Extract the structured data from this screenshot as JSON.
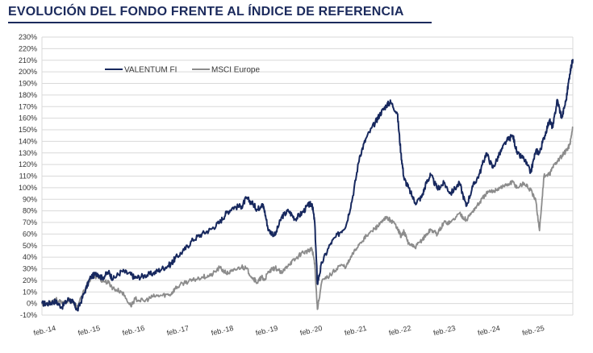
{
  "title": "EVOLUCIÓN DEL FONDO FRENTE AL ÍNDICE DE REFERENCIA",
  "chart_data": {
    "type": "line",
    "title": "EVOLUCIÓN DEL FONDO FRENTE AL ÍNDICE DE REFERENCIA",
    "xlabel": "",
    "ylabel": "",
    "ylim": [
      -10,
      230
    ],
    "y_unit": "%",
    "y_ticks": [
      "230%",
      "220%",
      "210%",
      "200%",
      "190%",
      "180%",
      "170%",
      "160%",
      "150%",
      "140%",
      "130%",
      "120%",
      "110%",
      "100%",
      "90%",
      "80%",
      "70%",
      "60%",
      "50%",
      "40%",
      "30%",
      "20%",
      "10%",
      "0%",
      "-10%"
    ],
    "x_ticks": [
      "feb.-14",
      "feb.-15",
      "feb.-16",
      "feb.-17",
      "feb.-18",
      "feb.-19",
      "feb.-20",
      "feb.-21",
      "feb.-22",
      "feb.-23",
      "feb.-24",
      "feb.-25"
    ],
    "x_range": [
      2014.0,
      2025.95
    ],
    "grid": true,
    "legend_position": "top-left",
    "colors": {
      "fund": "#17285e",
      "index": "#8c8c8c",
      "grid": "#d9d9d9",
      "plot_bg": "#ffffff"
    },
    "series": [
      {
        "name": "VALENTUM FI",
        "color": "#17285e",
        "x": [
          2014.0,
          2014.15,
          2014.3,
          2014.45,
          2014.6,
          2014.7,
          2014.8,
          2014.95,
          2015.1,
          2015.25,
          2015.35,
          2015.5,
          2015.6,
          2015.8,
          2016.0,
          2016.1,
          2016.3,
          2016.5,
          2016.7,
          2016.9,
          2017.0,
          2017.2,
          2017.4,
          2017.6,
          2017.8,
          2018.0,
          2018.15,
          2018.3,
          2018.5,
          2018.6,
          2018.75,
          2018.85,
          2018.95,
          2019.0,
          2019.1,
          2019.25,
          2019.4,
          2019.55,
          2019.7,
          2019.85,
          2020.0,
          2020.08,
          2020.14,
          2020.2,
          2020.3,
          2020.5,
          2020.7,
          2020.85,
          2021.0,
          2021.15,
          2021.3,
          2021.5,
          2021.6,
          2021.75,
          2021.85,
          2022.0,
          2022.08,
          2022.15,
          2022.25,
          2022.4,
          2022.55,
          2022.65,
          2022.75,
          2022.9,
          2023.05,
          2023.2,
          2023.4,
          2023.55,
          2023.7,
          2023.85,
          2024.0,
          2024.15,
          2024.3,
          2024.45,
          2024.6,
          2024.7,
          2024.85,
          2025.0,
          2025.12,
          2025.2,
          2025.3,
          2025.42,
          2025.5,
          2025.6,
          2025.7,
          2025.8,
          2025.88,
          2025.95
        ],
        "y": [
          0,
          0,
          2,
          -3,
          4,
          1,
          -6,
          9,
          23,
          26,
          22,
          27,
          21,
          28,
          25,
          22,
          24,
          26,
          30,
          34,
          39,
          46,
          55,
          60,
          64,
          70,
          78,
          83,
          84,
          91,
          86,
          81,
          86,
          82,
          63,
          59,
          75,
          80,
          73,
          78,
          85,
          86,
          70,
          17,
          35,
          52,
          61,
          68,
          93,
          127,
          143,
          156,
          163,
          171,
          174,
          164,
          130,
          108,
          100,
          87,
          92,
          104,
          111,
          99,
          104,
          95,
          104,
          84,
          101,
          112,
          130,
          117,
          129,
          140,
          145,
          129,
          125,
          113,
          132,
          130,
          143,
          158,
          152,
          176,
          160,
          176,
          198,
          211
        ]
      },
      {
        "name": "MSCI Europe",
        "color": "#8c8c8c",
        "x": [
          2014.0,
          2014.15,
          2014.3,
          2014.45,
          2014.6,
          2014.7,
          2014.8,
          2014.95,
          2015.1,
          2015.25,
          2015.35,
          2015.5,
          2015.6,
          2015.8,
          2016.0,
          2016.1,
          2016.3,
          2016.5,
          2016.7,
          2016.9,
          2017.0,
          2017.2,
          2017.4,
          2017.6,
          2017.8,
          2018.0,
          2018.15,
          2018.3,
          2018.5,
          2018.6,
          2018.75,
          2018.85,
          2018.95,
          2019.0,
          2019.1,
          2019.25,
          2019.4,
          2019.55,
          2019.7,
          2019.85,
          2020.0,
          2020.08,
          2020.14,
          2020.2,
          2020.3,
          2020.5,
          2020.7,
          2020.85,
          2021.0,
          2021.15,
          2021.3,
          2021.5,
          2021.6,
          2021.75,
          2021.85,
          2022.0,
          2022.08,
          2022.15,
          2022.25,
          2022.4,
          2022.55,
          2022.65,
          2022.75,
          2022.9,
          2023.05,
          2023.2,
          2023.4,
          2023.55,
          2023.7,
          2023.85,
          2024.0,
          2024.15,
          2024.3,
          2024.45,
          2024.6,
          2024.7,
          2024.85,
          2025.0,
          2025.12,
          2025.2,
          2025.3,
          2025.42,
          2025.5,
          2025.6,
          2025.7,
          2025.8,
          2025.88,
          2025.95
        ],
        "y": [
          0,
          0,
          4,
          0,
          3,
          1,
          -3,
          11,
          22,
          24,
          20,
          18,
          13,
          10,
          -2,
          4,
          2,
          6,
          7,
          8,
          13,
          18,
          20,
          23,
          24,
          31,
          26,
          28,
          32,
          30,
          22,
          18,
          23,
          20,
          27,
          31,
          26,
          34,
          38,
          44,
          45,
          47,
          35,
          -5,
          19,
          25,
          33,
          32,
          43,
          52,
          58,
          65,
          68,
          74,
          72,
          66,
          58,
          62,
          52,
          48,
          55,
          59,
          64,
          60,
          70,
          70,
          78,
          72,
          80,
          87,
          95,
          97,
          100,
          102,
          105,
          100,
          104,
          98,
          88,
          63,
          110,
          111,
          118,
          123,
          127,
          132,
          137,
          152
        ]
      }
    ]
  }
}
